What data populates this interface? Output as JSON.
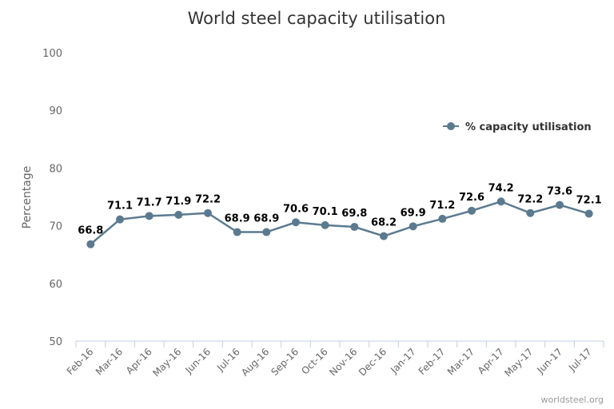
{
  "chart_data": {
    "type": "line",
    "title": "World steel capacity utilisation",
    "ylabel": "Percentage",
    "xlabel": "",
    "ylim": [
      50,
      100
    ],
    "yticks": [
      50,
      60,
      70,
      80,
      90,
      100
    ],
    "categories": [
      "Feb-16",
      "Mar-16",
      "Apr-16",
      "May-16",
      "Jun-16",
      "Jul-16",
      "Aug-16",
      "Sep-16",
      "Oct-16",
      "Nov-16",
      "Dec-16",
      "Jan-17",
      "Feb-17",
      "Mar-17",
      "Apr-17",
      "May-17",
      "Jun-17",
      "Jul-17"
    ],
    "series": [
      {
        "name": "% capacity utilisation",
        "color": "#5b7a8f",
        "values": [
          66.8,
          71.1,
          71.7,
          71.9,
          72.2,
          68.9,
          68.9,
          70.6,
          70.1,
          69.8,
          68.2,
          69.9,
          71.2,
          72.6,
          74.2,
          72.2,
          73.6,
          72.1
        ]
      }
    ],
    "grid": false,
    "legend_position": "right",
    "credit": "worldsteel.org"
  }
}
